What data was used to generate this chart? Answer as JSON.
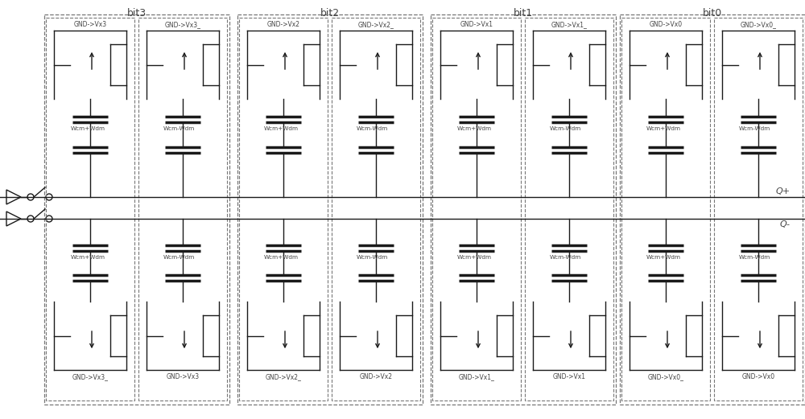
{
  "fig_width": 10.0,
  "fig_height": 5.21,
  "bg_color": "#ffffff",
  "line_color": "#1a1a1a",
  "dashed_color": "#777777",
  "text_color": "#444444",
  "bits": [
    "bit3",
    "bit2",
    "bit1",
    "bit0"
  ],
  "top_labels": [
    [
      "GND->Vx3",
      "GND->Vx3_"
    ],
    [
      "GND->Vx2",
      "GND->Vx2_"
    ],
    [
      "GND->Vx1",
      "GND->Vx1_"
    ],
    [
      "GND->Vx0",
      "GND->Vx0_"
    ]
  ],
  "bottom_labels": [
    [
      "GND->Vx3_",
      "GND->Vx3"
    ],
    [
      "GND->Vx2_",
      "GND->Vx2"
    ],
    [
      "GND->Vx1_",
      "GND->Vx1"
    ],
    [
      "GND->Vx0_",
      "GND->Vx0"
    ]
  ],
  "weight_labels_top": [
    [
      "Wcm+Wdm",
      "Wcm-Wdm"
    ],
    [
      "Wcm+Wdm",
      "Wcm-Wdm"
    ],
    [
      "Wcm+Wdm",
      "Wcm-Wdm"
    ],
    [
      "Wcm+Wdm",
      "Wcm-Wdm"
    ]
  ],
  "weight_labels_bottom": [
    [
      "Wcm+Wdm",
      "Wcm-Wdm"
    ],
    [
      "Wcm+Wdm",
      "Wcm-Wdm"
    ],
    [
      "Wcm+Wdm",
      "Wcm-Wdm"
    ],
    [
      "Wcm+Wdm",
      "Wcm-Wdm"
    ]
  ],
  "Qplus_label": "Q+",
  "Qminus_label": "Q-"
}
